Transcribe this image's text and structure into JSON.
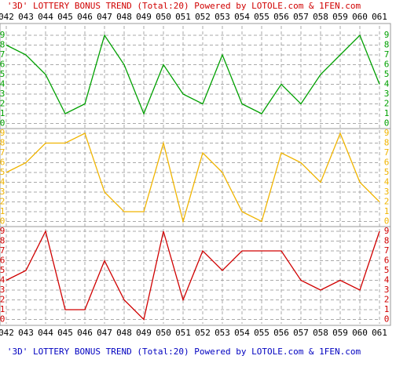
{
  "chart_data": {
    "type": "line",
    "title": "'3D' LOTTERY BONUS TREND (Total:20)  Powered by LOTOLE.com & 1FEN.com",
    "categories": [
      "042",
      "043",
      "044",
      "045",
      "046",
      "047",
      "048",
      "049",
      "050",
      "051",
      "052",
      "053",
      "054",
      "055",
      "056",
      "057",
      "058",
      "059",
      "060",
      "061"
    ],
    "ylim": [
      0,
      9
    ],
    "yticks": [
      0,
      1,
      2,
      3,
      4,
      5,
      6,
      7,
      8,
      9
    ],
    "grid": true,
    "series": [
      {
        "color": "#00a000",
        "values": [
          8,
          7,
          5,
          1,
          2,
          9,
          6,
          1,
          6,
          3,
          2,
          7,
          2,
          1,
          4,
          2,
          5,
          7,
          9,
          4
        ]
      },
      {
        "color": "#f0b400",
        "values": [
          5,
          6,
          8,
          8,
          9,
          3,
          1,
          1,
          8,
          0,
          7,
          5,
          1,
          0,
          7,
          6,
          4,
          9,
          4,
          2
        ]
      },
      {
        "color": "#d00000",
        "values": [
          4,
          5,
          9,
          1,
          1,
          6,
          2,
          0,
          9,
          2,
          7,
          5,
          7,
          7,
          7,
          4,
          3,
          4,
          3,
          9
        ]
      }
    ]
  }
}
